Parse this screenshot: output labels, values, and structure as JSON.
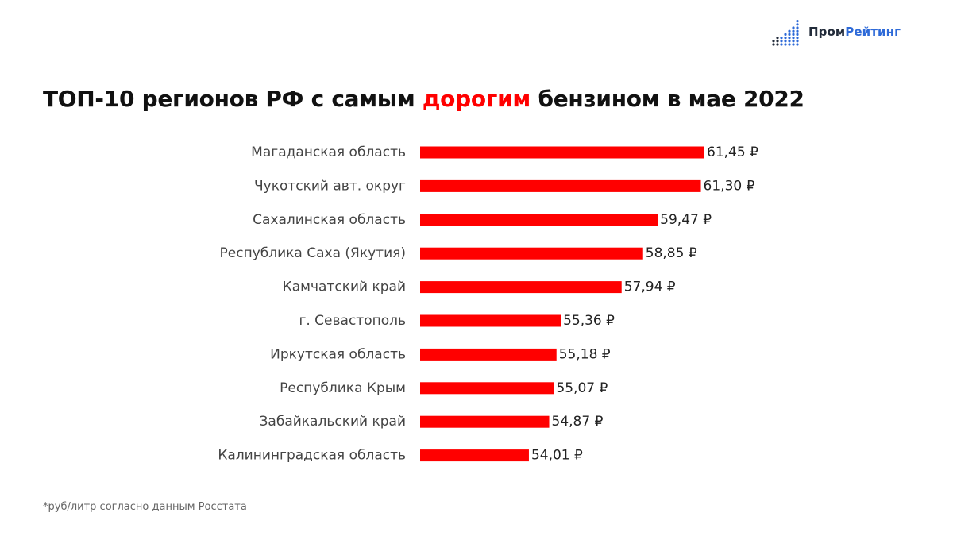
{
  "logo": {
    "part1": "Пром",
    "part2": "Рейтинг",
    "color_dark": "#222b3a",
    "color_blue": "#2e6ad8"
  },
  "title": {
    "before": "ТОП-10 регионов РФ с самым ",
    "highlight": "дорогим",
    "after": " бензином в мае 2022"
  },
  "colors": {
    "bar": "#ff0000",
    "highlight": "#ff0000",
    "label": "#444444",
    "value": "#222222"
  },
  "chart_data": {
    "type": "bar",
    "orientation": "horizontal",
    "categories": [
      "Магаданская область",
      "Чукотский авт. округ",
      "Сахалинская область",
      "Республика Саха (Якутия)",
      "Камчатский край",
      "г. Севастополь",
      "Иркутская область",
      "Республика Крым",
      "Забайкальский край",
      "Калининградская область"
    ],
    "values": [
      61.45,
      61.3,
      59.47,
      58.85,
      57.94,
      55.36,
      55.18,
      55.07,
      54.87,
      54.01
    ],
    "value_labels": [
      "61,45 ₽",
      "61,30 ₽",
      "59,47 ₽",
      "58,85 ₽",
      "57,94 ₽",
      "55,36 ₽",
      "55,18 ₽",
      "55,07 ₽",
      "54,87 ₽",
      "54,01 ₽"
    ],
    "xlim": [
      49.4,
      61.45
    ],
    "grid": false,
    "axes_visible": false
  },
  "footnote": "*руб/литр согласно данным Росстата"
}
